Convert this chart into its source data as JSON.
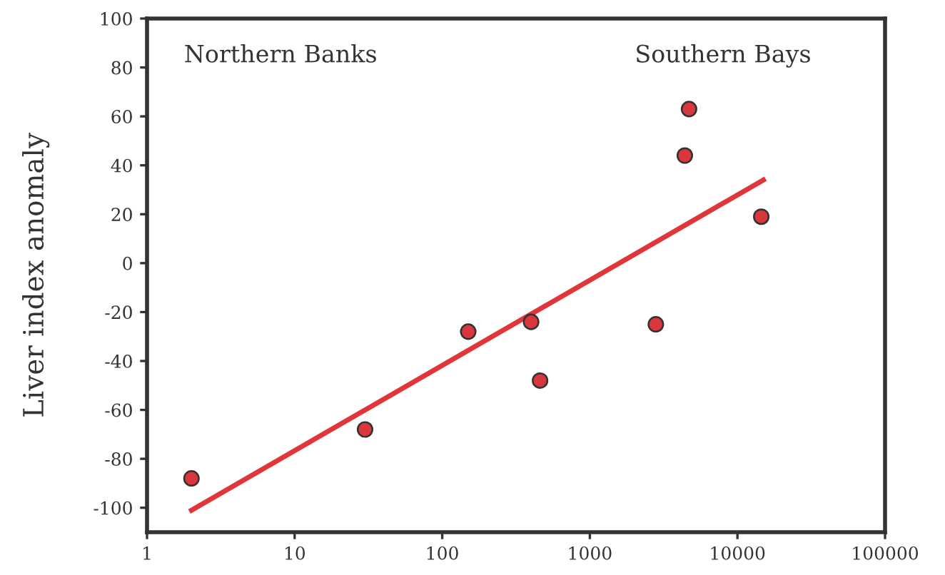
{
  "chart_data": {
    "type": "scatter",
    "ylabel": "Liver index anomaly",
    "annotations": [
      "Northern Banks",
      "Southern Bays"
    ],
    "series": [
      {
        "marker": "circle",
        "color": "#d9363e",
        "x": [
          2,
          30,
          150,
          400,
          460,
          2800,
          4400,
          4700,
          14500
        ],
        "values": [
          -88,
          -68,
          -28,
          -24,
          -48,
          -25,
          44,
          63,
          19
        ]
      },
      {
        "type": "line",
        "color": "#e0363a",
        "x": [
          2,
          15000
        ],
        "values": [
          -101,
          34
        ]
      }
    ],
    "log": "x",
    "xlim": [
      1,
      100000
    ],
    "xticks": [
      1,
      10,
      100,
      1000,
      10000,
      100000
    ],
    "ylim": [
      -110,
      100
    ],
    "yticks": [
      -100,
      -80,
      -60,
      -40,
      -20,
      0,
      20,
      40,
      60,
      80,
      100
    ],
    "grid": false,
    "legend": false,
    "line_style": "solid"
  }
}
